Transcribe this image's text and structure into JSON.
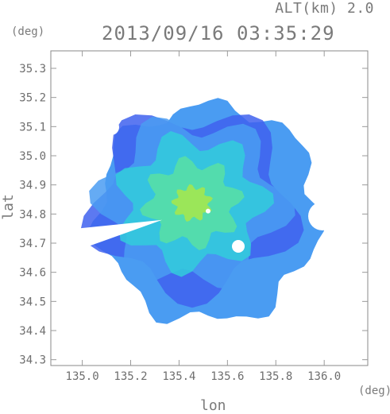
{
  "header": {
    "altitude_label": "ALT(km) 2.0",
    "timestamp": "2013/09/16 03:35:29",
    "y_unit": "(deg)",
    "x_unit": "(deg)"
  },
  "chart_data": {
    "type": "heatmap",
    "title": "2013/09/16 03:35:29",
    "xlabel": "lon",
    "ylabel": "lat",
    "xlim": [
      134.87,
      136.18
    ],
    "ylim": [
      34.28,
      35.36
    ],
    "x_ticks": [
      135.0,
      135.2,
      135.4,
      135.6,
      135.8,
      136.0
    ],
    "x_tick_labels": [
      "135.0",
      "135.2",
      "135.4",
      "135.6",
      "135.8",
      "136.0"
    ],
    "y_ticks": [
      34.3,
      34.4,
      34.5,
      34.6,
      34.7,
      34.8,
      34.9,
      35.0,
      35.1,
      35.2,
      35.3
    ],
    "y_tick_labels": [
      "34.3",
      "34.4",
      "34.5",
      "34.6",
      "34.7",
      "34.8",
      "34.9",
      "35.0",
      "35.1",
      "35.2",
      "35.3"
    ],
    "radar_center": [
      135.52,
      34.81
    ],
    "radar_range_deg": 0.49,
    "blind_sector": {
      "apex": [
        135.33,
        34.78
      ],
      "edge_points": [
        [
          134.86,
          34.74
        ],
        [
          134.86,
          34.64
        ]
      ]
    },
    "colors": {
      "low": "#3f62ee",
      "mid_low": "#4a9cf2",
      "mid": "#33ccdc",
      "mid_high": "#58e0a4",
      "high": "#a8e84a",
      "axis": "#9a9a9a",
      "frame": "#8a8a8a"
    }
  }
}
